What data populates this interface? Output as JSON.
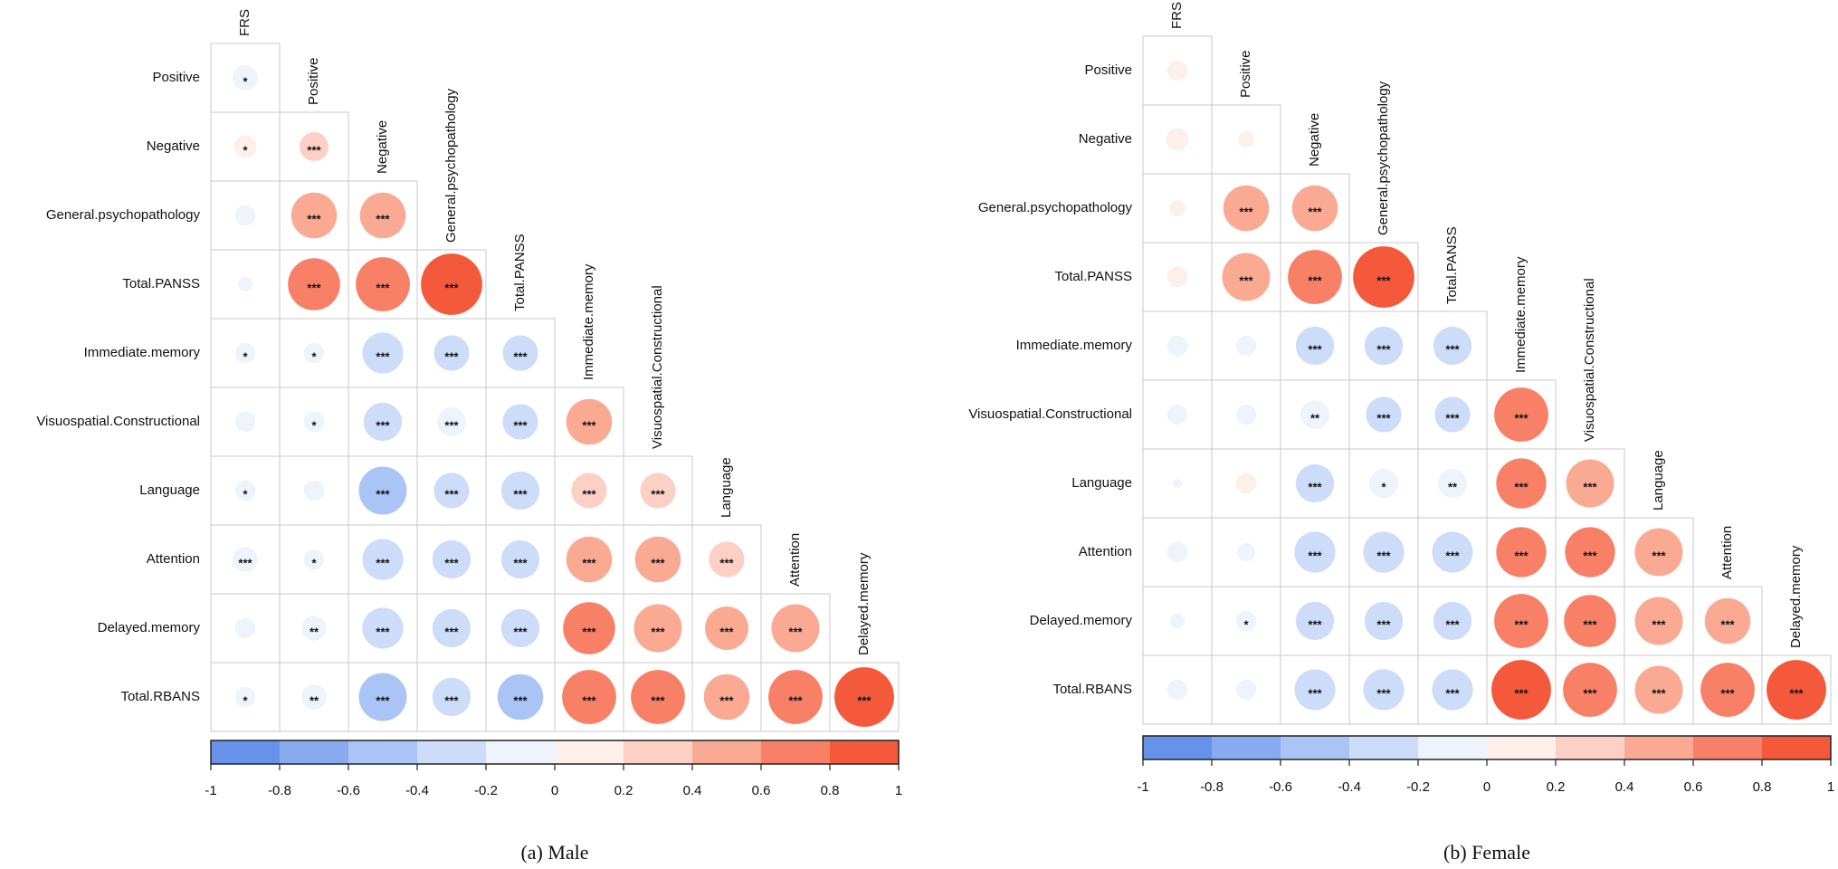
{
  "chart_data": [
    {
      "type": "corrplot",
      "title": "(a) Male",
      "row_labels": [
        "Positive",
        "Negative",
        "General.psychopathology",
        "Total.PANSS",
        "Immediate.memory",
        "Visuospatial.Constructional",
        "Language",
        "Attention",
        "Delayed.memory",
        "Total.RBANS"
      ],
      "col_labels": [
        "FRS",
        "Positive",
        "Negative",
        "General.psychopathology",
        "Total.PANSS",
        "Immediate.memory",
        "Visuospatial.Constructional",
        "Language",
        "Attention",
        "Delayed.memory"
      ],
      "values": [
        [
          -0.15
        ],
        [
          0.12,
          0.2
        ],
        [
          -0.1,
          0.5,
          0.5
        ],
        [
          -0.05,
          0.65,
          0.7,
          0.9
        ],
        [
          -0.1,
          -0.1,
          -0.4,
          -0.3,
          -0.3
        ],
        [
          -0.1,
          -0.1,
          -0.35,
          -0.2,
          -0.3,
          0.5
        ],
        [
          -0.1,
          -0.1,
          -0.55,
          -0.3,
          -0.35,
          0.3,
          0.3
        ],
        [
          -0.15,
          -0.1,
          -0.4,
          -0.35,
          -0.35,
          0.5,
          0.5,
          0.3
        ],
        [
          -0.1,
          -0.15,
          -0.4,
          -0.35,
          -0.35,
          0.65,
          0.55,
          0.45,
          0.55
        ],
        [
          -0.1,
          -0.15,
          -0.55,
          -0.35,
          -0.5,
          0.7,
          0.7,
          0.5,
          0.7,
          0.85
        ]
      ],
      "stars": [
        [
          "*"
        ],
        [
          "*",
          "***"
        ],
        [
          null,
          "***",
          "***"
        ],
        [
          null,
          "***",
          "***",
          "***"
        ],
        [
          "*",
          "*",
          "***",
          "***",
          "***"
        ],
        [
          null,
          "*",
          "***",
          "***",
          "***",
          "***"
        ],
        [
          "*",
          null,
          "***",
          "***",
          "***",
          "***",
          "***"
        ],
        [
          "***",
          "*",
          "***",
          "***",
          "***",
          "***",
          "***",
          "***"
        ],
        [
          null,
          "**",
          "***",
          "***",
          "***",
          "***",
          "***",
          "***",
          "***"
        ],
        [
          "*",
          "**",
          "***",
          "***",
          "***",
          "***",
          "***",
          "***",
          "***",
          "***"
        ]
      ],
      "clim": [
        -1,
        1
      ],
      "ticks": [
        -1,
        -0.8,
        -0.6,
        -0.4,
        -0.2,
        0,
        0.2,
        0.4,
        0.6,
        0.8,
        1
      ],
      "colorbar_colors": [
        "#6792ea",
        "#88abf0",
        "#aac4f5",
        "#ccdcf9",
        "#eef3fc",
        "#fdefea",
        "#fcd0c4",
        "#faa993",
        "#f78067",
        "#f4593b"
      ]
    },
    {
      "type": "corrplot",
      "title": "(b) Female",
      "row_labels": [
        "Positive",
        "Negative",
        "General.psychopathology",
        "Total.PANSS",
        "Immediate.memory",
        "Visuospatial.Constructional",
        "Language",
        "Attention",
        "Delayed.memory",
        "Total.RBANS"
      ],
      "col_labels": [
        "FRS",
        "Positive",
        "Negative",
        "General.psychopathology",
        "Total.PANSS",
        "Immediate.memory",
        "Visuospatial.Constructional",
        "Language",
        "Attention",
        "Delayed.memory"
      ],
      "values": [
        [
          0.1
        ],
        [
          0.12,
          0.06
        ],
        [
          0.06,
          0.5,
          0.5
        ],
        [
          0.1,
          0.55,
          0.7,
          0.9
        ],
        [
          -0.1,
          -0.1,
          -0.35,
          -0.35,
          -0.35
        ],
        [
          -0.1,
          -0.1,
          -0.2,
          -0.3,
          -0.3,
          0.7
        ],
        [
          -0.02,
          0.1,
          -0.35,
          -0.2,
          -0.2,
          0.6,
          0.55
        ],
        [
          -0.1,
          -0.08,
          -0.4,
          -0.4,
          -0.4,
          0.6,
          0.6,
          0.55
        ],
        [
          -0.05,
          -0.1,
          -0.35,
          -0.35,
          -0.35,
          0.7,
          0.65,
          0.55,
          0.5
        ],
        [
          -0.1,
          -0.1,
          -0.4,
          -0.4,
          -0.4,
          0.85,
          0.7,
          0.55,
          0.7,
          0.85
        ]
      ],
      "stars": [
        [
          null
        ],
        [
          null,
          null
        ],
        [
          null,
          "***",
          "***"
        ],
        [
          null,
          "***",
          "***",
          "***"
        ],
        [
          null,
          null,
          "***",
          "***",
          "***"
        ],
        [
          null,
          null,
          "**",
          "***",
          "***",
          "***"
        ],
        [
          null,
          null,
          "***",
          "*",
          "**",
          "***",
          "***"
        ],
        [
          null,
          null,
          "***",
          "***",
          "***",
          "***",
          "***",
          "***"
        ],
        [
          null,
          "*",
          "***",
          "***",
          "***",
          "***",
          "***",
          "***",
          "***"
        ],
        [
          null,
          null,
          "***",
          "***",
          "***",
          "***",
          "***",
          "***",
          "***",
          "***"
        ]
      ],
      "clim": [
        -1,
        1
      ],
      "ticks": [
        -1,
        -0.8,
        -0.6,
        -0.4,
        -0.2,
        0,
        0.2,
        0.4,
        0.6,
        0.8,
        1
      ],
      "colorbar_colors": [
        "#6792ea",
        "#88abf0",
        "#aac4f5",
        "#ccdcf9",
        "#eef3fc",
        "#fdefea",
        "#fcd0c4",
        "#faa993",
        "#f78067",
        "#f4593b"
      ]
    }
  ]
}
